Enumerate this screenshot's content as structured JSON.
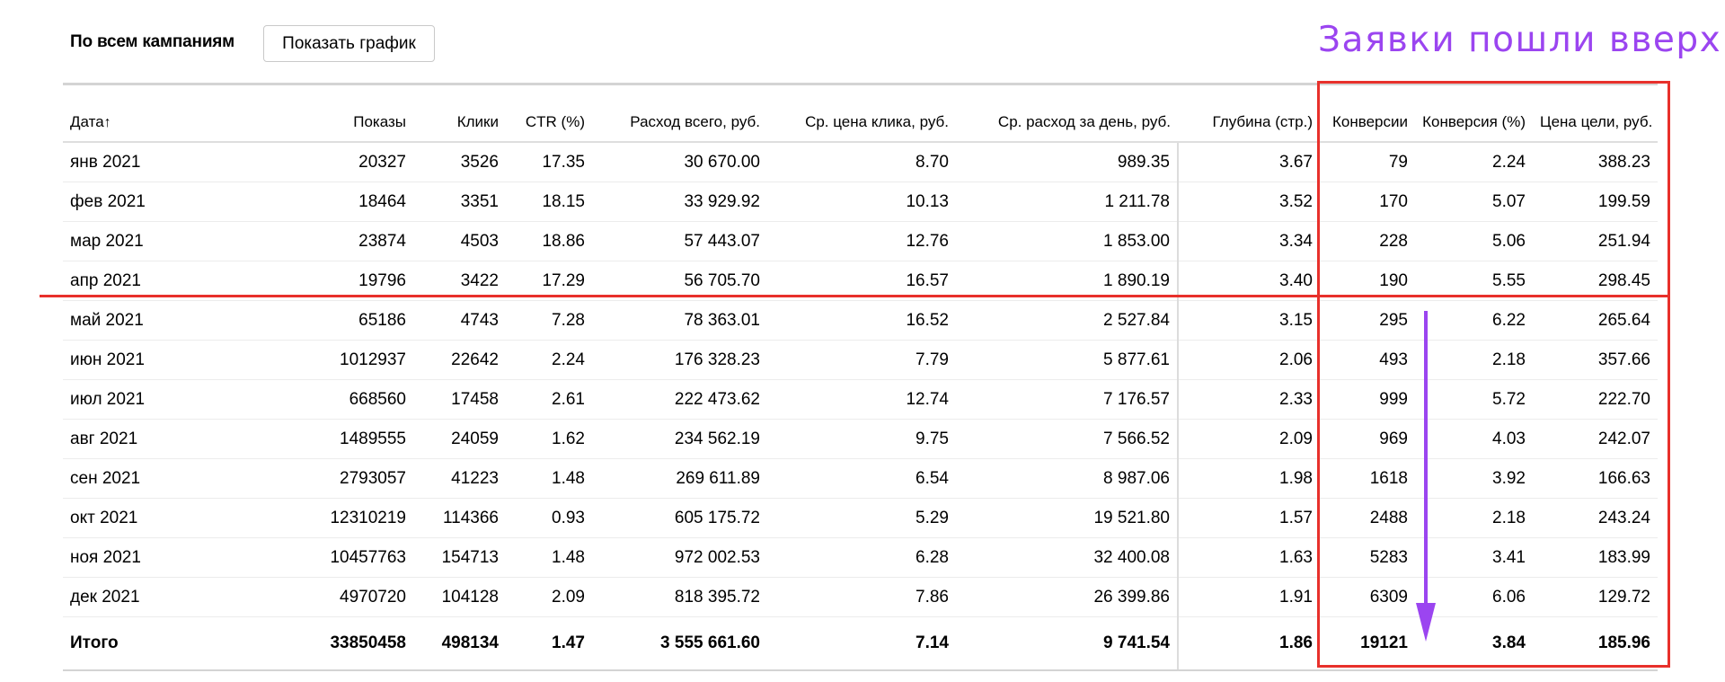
{
  "header": {
    "label": "По всем кампаниям",
    "show_chart_button": "Показать график"
  },
  "annotation": {
    "text": "Заявки пошли вверх",
    "color": "#9b45f0"
  },
  "highlight_color": "#e8302b",
  "table": {
    "columns": [
      "Дата",
      "Показы",
      "Клики",
      "CTR (%)",
      "Расход всего, руб.",
      "Ср. цена клика, руб.",
      "Ср. расход за день, руб.",
      "Глубина (стр.)",
      "Конверсии",
      "Конверсия (%)",
      "Цена цели, руб."
    ],
    "sort_arrow": "↑",
    "rows": [
      [
        "янв 2021",
        "20327",
        "3526",
        "17.35",
        "30 670.00",
        "8.70",
        "989.35",
        "3.67",
        "79",
        "2.24",
        "388.23"
      ],
      [
        "фев 2021",
        "18464",
        "3351",
        "18.15",
        "33 929.92",
        "10.13",
        "1 211.78",
        "3.52",
        "170",
        "5.07",
        "199.59"
      ],
      [
        "мар 2021",
        "23874",
        "4503",
        "18.86",
        "57 443.07",
        "12.76",
        "1 853.00",
        "3.34",
        "228",
        "5.06",
        "251.94"
      ],
      [
        "апр 2021",
        "19796",
        "3422",
        "17.29",
        "56 705.70",
        "16.57",
        "1 890.19",
        "3.40",
        "190",
        "5.55",
        "298.45"
      ],
      [
        "май 2021",
        "65186",
        "4743",
        "7.28",
        "78 363.01",
        "16.52",
        "2 527.84",
        "3.15",
        "295",
        "6.22",
        "265.64"
      ],
      [
        "июн 2021",
        "1012937",
        "22642",
        "2.24",
        "176 328.23",
        "7.79",
        "5 877.61",
        "2.06",
        "493",
        "2.18",
        "357.66"
      ],
      [
        "июл 2021",
        "668560",
        "17458",
        "2.61",
        "222 473.62",
        "12.74",
        "7 176.57",
        "2.33",
        "999",
        "5.72",
        "222.70"
      ],
      [
        "авг 2021",
        "1489555",
        "24059",
        "1.62",
        "234 562.19",
        "9.75",
        "7 566.52",
        "2.09",
        "969",
        "4.03",
        "242.07"
      ],
      [
        "сен 2021",
        "2793057",
        "41223",
        "1.48",
        "269 611.89",
        "6.54",
        "8 987.06",
        "1.98",
        "1618",
        "3.92",
        "166.63"
      ],
      [
        "окт 2021",
        "12310219",
        "114366",
        "0.93",
        "605 175.72",
        "5.29",
        "19 521.80",
        "1.57",
        "2488",
        "2.18",
        "243.24"
      ],
      [
        "ноя 2021",
        "10457763",
        "154713",
        "1.48",
        "972 002.53",
        "6.28",
        "32 400.08",
        "1.63",
        "5283",
        "3.41",
        "183.99"
      ],
      [
        "дек 2021",
        "4970720",
        "104128",
        "2.09",
        "818 395.72",
        "7.86",
        "26 399.86",
        "1.91",
        "6309",
        "6.06",
        "129.72"
      ]
    ],
    "total": [
      "Итого",
      "33850458",
      "498134",
      "1.47",
      "3 555 661.60",
      "7.14",
      "9 741.54",
      "1.86",
      "19121",
      "3.84",
      "185.96"
    ]
  }
}
